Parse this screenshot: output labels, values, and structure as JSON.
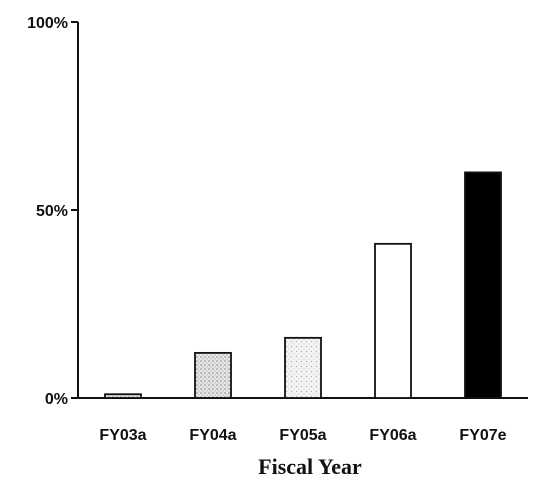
{
  "chart_data": {
    "type": "bar",
    "title": "",
    "xlabel": "Fiscal Year",
    "ylabel": "",
    "categories": [
      "FY03a",
      "FY04a",
      "FY05a",
      "FY06a",
      "FY07e"
    ],
    "values": [
      1,
      12,
      16,
      41,
      60
    ],
    "ylim": [
      0,
      100
    ],
    "yticks": [
      0,
      50,
      100
    ],
    "ytick_labels": [
      "0%",
      "50%",
      "100%"
    ],
    "grid": false,
    "legend": "none",
    "bar_fills": [
      "#d9d9d9",
      "#dedede",
      "#eeeeee",
      "#ffffff",
      "#000000"
    ],
    "bar_patterns": [
      "dotted",
      "dotted",
      "dotted",
      "none",
      "solid"
    ]
  }
}
